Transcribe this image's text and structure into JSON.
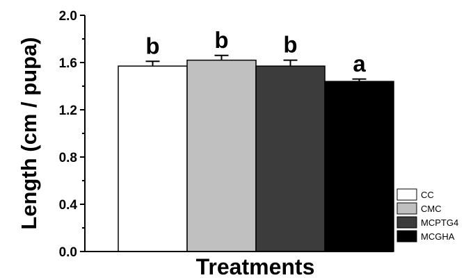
{
  "chart_data": {
    "type": "bar",
    "title": "",
    "xlabel": "Treatments",
    "ylabel": "Length (cm / pupa)",
    "ylim": [
      0,
      2.0
    ],
    "yticks": [
      "0.0",
      "0.4",
      "0.8",
      "1.2",
      "1.6",
      "2.0"
    ],
    "grid": false,
    "legend_position": "bottom-right",
    "bars": [
      {
        "name": "CC",
        "value": 1.57,
        "error": 0.04,
        "letter": "b",
        "color": "#ffffff"
      },
      {
        "name": "CMC",
        "value": 1.62,
        "error": 0.04,
        "letter": "b",
        "color": "#c0c0c0"
      },
      {
        "name": "MCPTG4",
        "value": 1.57,
        "error": 0.05,
        "letter": "b",
        "color": "#3c3c3c"
      },
      {
        "name": "MCGHA",
        "value": 1.44,
        "error": 0.02,
        "letter": "a",
        "color": "#000000"
      }
    ]
  }
}
